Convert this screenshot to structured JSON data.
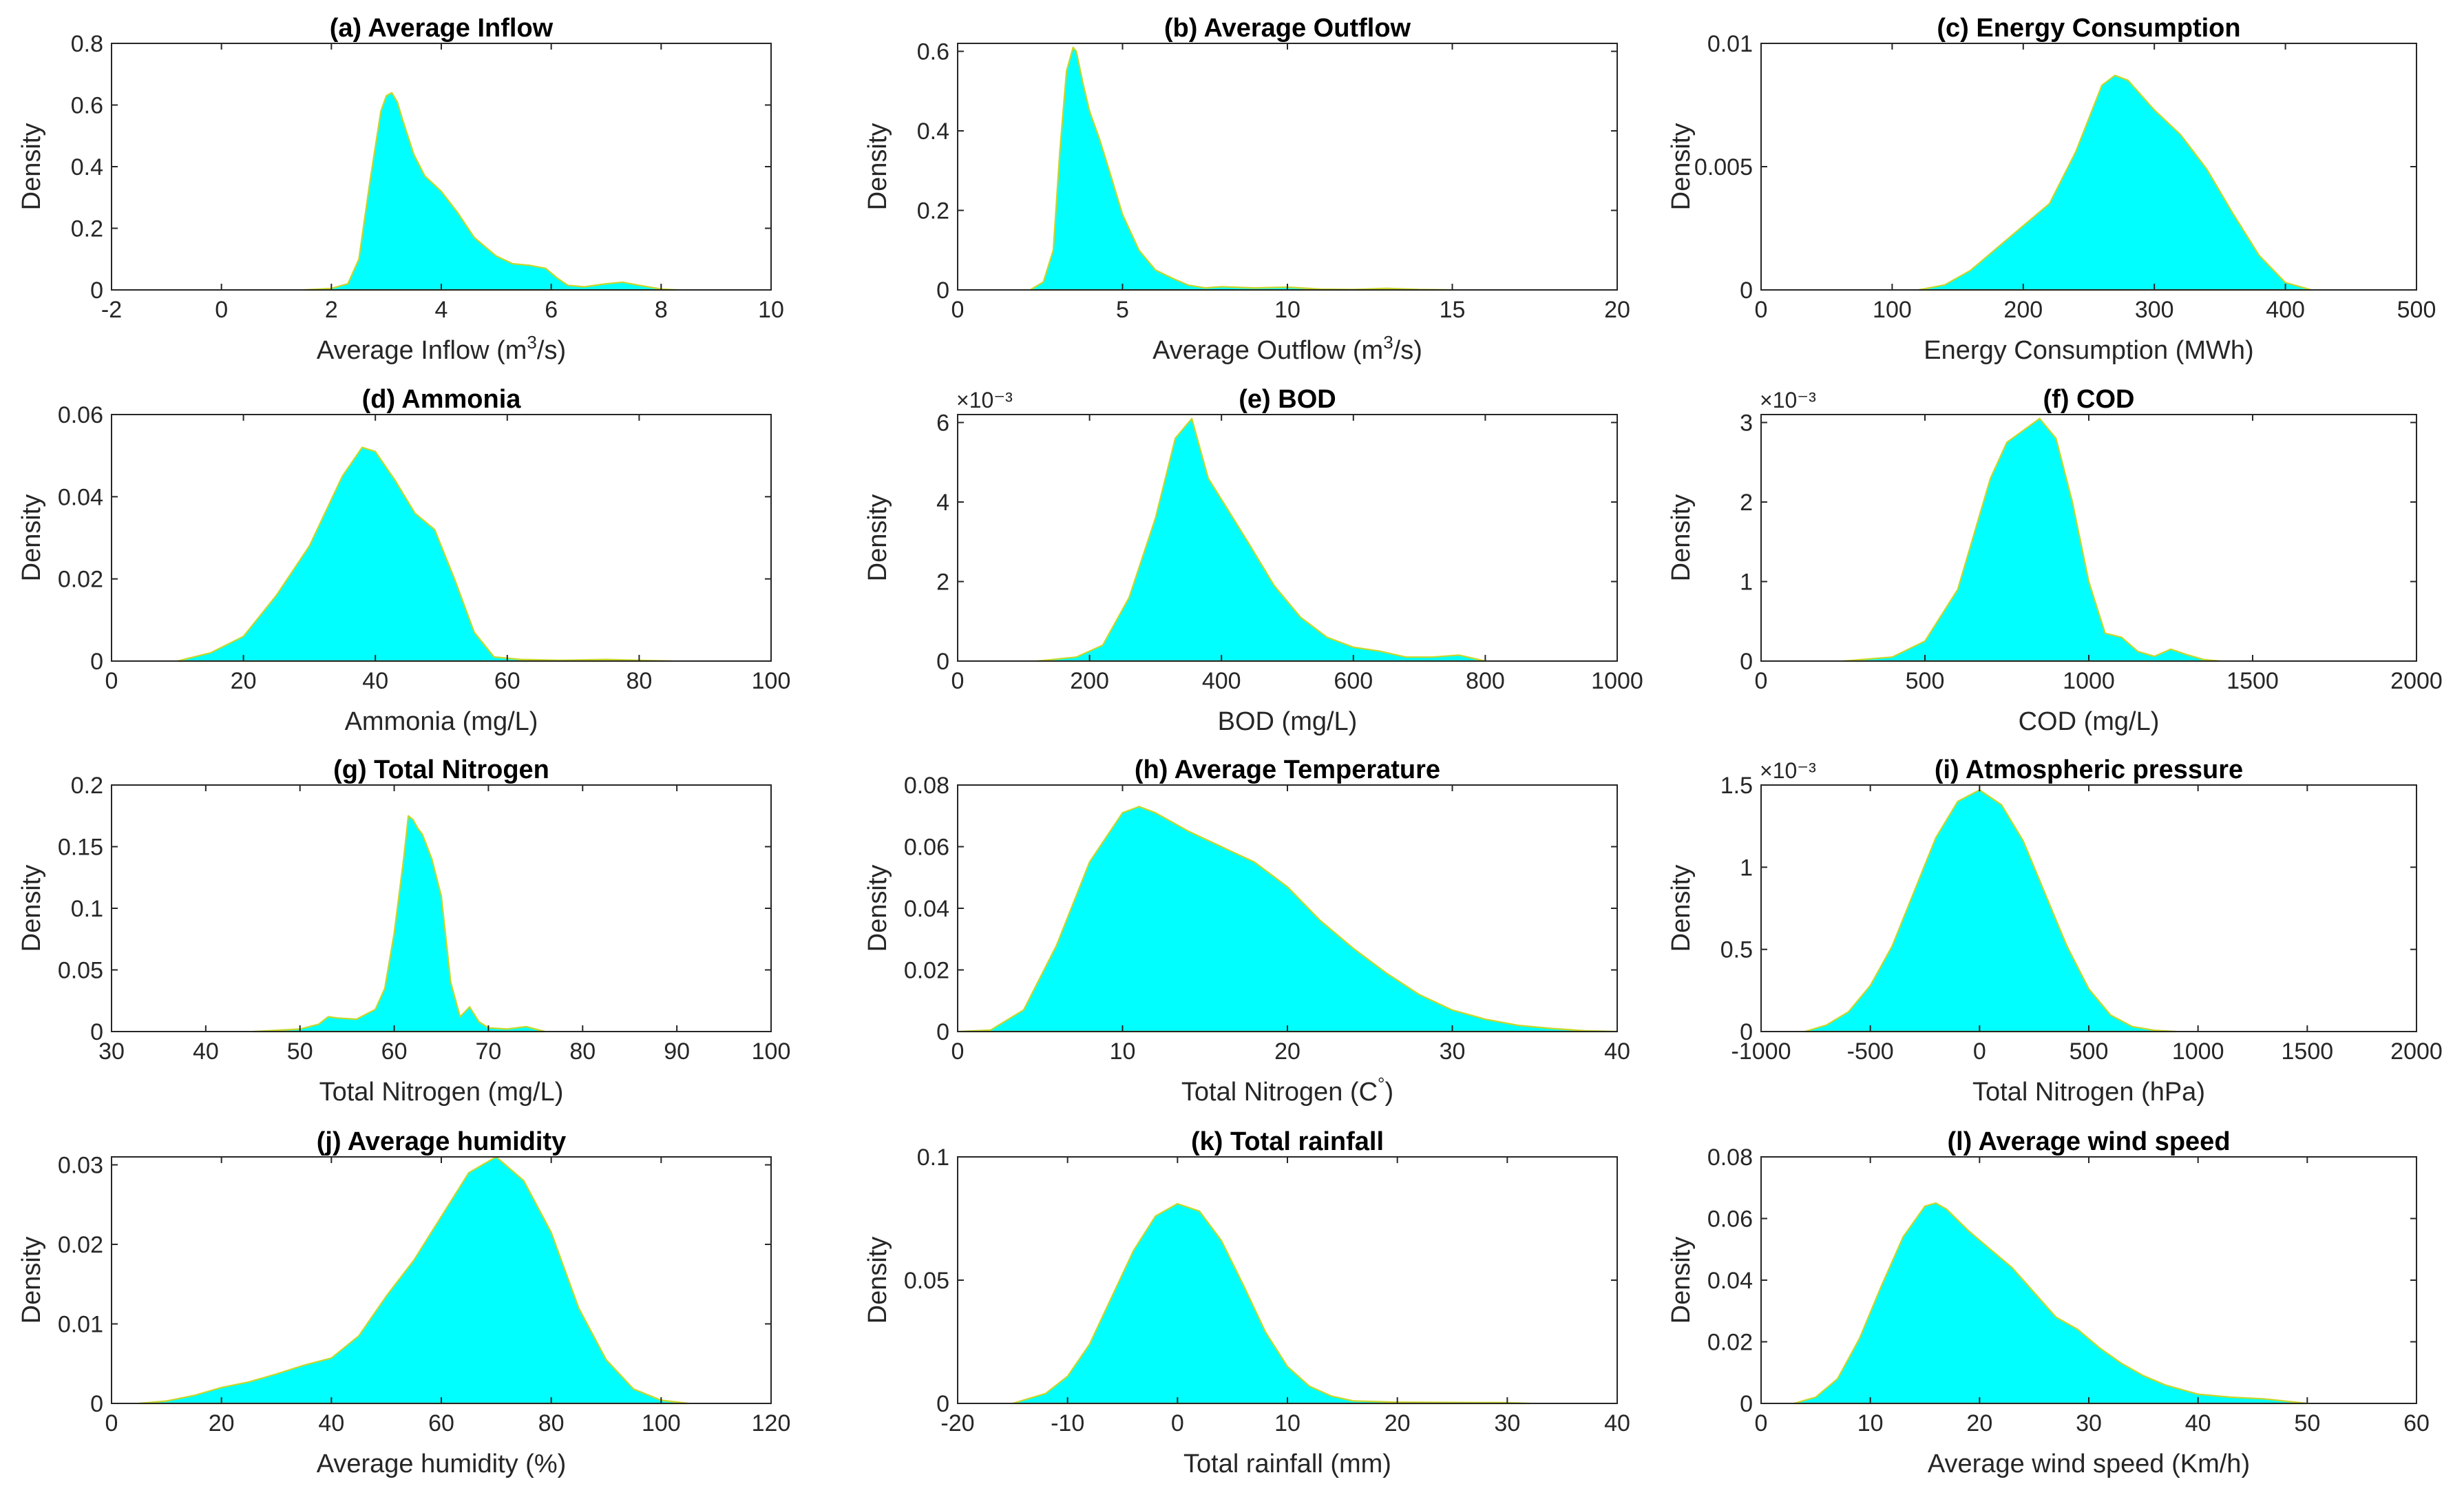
{
  "figure": {
    "colors": {
      "fill": "#00FFFF",
      "edge": "#C8D62A",
      "axis": "#262626",
      "title": "#000000"
    },
    "y_axis_label": "Density"
  },
  "chart_data": [
    {
      "type": "area",
      "title": "(a) Average Inflow",
      "xlabel_parts": [
        "Average Inflow (m",
        "3",
        "/s)"
      ],
      "ylabel": "Density",
      "xlim": [
        -2,
        10
      ],
      "ylim": [
        0,
        0.8
      ],
      "xticks": [
        -2,
        0,
        2,
        4,
        6,
        8,
        10
      ],
      "yticks": [
        0,
        0.2,
        0.4,
        0.6,
        0.8
      ],
      "exponent": "",
      "x": [
        1.5,
        2.0,
        2.3,
        2.5,
        2.7,
        2.9,
        3.0,
        3.1,
        3.2,
        3.3,
        3.5,
        3.7,
        4.0,
        4.3,
        4.6,
        5.0,
        5.3,
        5.6,
        5.9,
        6.1,
        6.3,
        6.6,
        7.0,
        7.3,
        7.6,
        8.0,
        8.3
      ],
      "y": [
        0.0,
        0.005,
        0.02,
        0.1,
        0.35,
        0.58,
        0.63,
        0.64,
        0.61,
        0.55,
        0.44,
        0.37,
        0.32,
        0.25,
        0.17,
        0.11,
        0.085,
        0.08,
        0.07,
        0.04,
        0.015,
        0.01,
        0.02,
        0.025,
        0.015,
        0.003,
        0.0
      ]
    },
    {
      "type": "area",
      "title": "(b) Average Outflow",
      "xlabel_parts": [
        "Average Outflow (m",
        "3",
        "/s)"
      ],
      "ylabel": "Density",
      "xlim": [
        0,
        20
      ],
      "ylim": [
        0,
        0.62
      ],
      "xticks": [
        0,
        5,
        10,
        15,
        20
      ],
      "yticks": [
        0,
        0.2,
        0.4,
        0.6
      ],
      "exponent": "",
      "x": [
        2.2,
        2.6,
        2.9,
        3.1,
        3.3,
        3.5,
        3.6,
        3.8,
        4.0,
        4.3,
        4.6,
        5.0,
        5.5,
        6.0,
        6.5,
        7.0,
        7.5,
        8.0,
        9.0,
        10.0,
        11.0,
        12.0,
        13.0,
        14.0,
        15.0
      ],
      "y": [
        0.0,
        0.02,
        0.1,
        0.35,
        0.55,
        0.61,
        0.6,
        0.52,
        0.45,
        0.38,
        0.3,
        0.19,
        0.1,
        0.05,
        0.03,
        0.012,
        0.005,
        0.008,
        0.005,
        0.007,
        0.002,
        0.001,
        0.004,
        0.001,
        0.0
      ]
    },
    {
      "type": "area",
      "title": "(c) Energy Consumption",
      "xlabel_parts": [
        "Energy Consumption (MWh)"
      ],
      "ylabel": "Density",
      "xlim": [
        0,
        500
      ],
      "ylim": [
        0,
        0.01
      ],
      "xticks": [
        0,
        100,
        200,
        300,
        400,
        500
      ],
      "yticks": [
        0,
        0.005,
        0.01
      ],
      "exponent": "",
      "x": [
        120,
        140,
        160,
        180,
        200,
        220,
        240,
        260,
        270,
        280,
        300,
        320,
        340,
        360,
        380,
        400,
        420
      ],
      "y": [
        0.0,
        0.0002,
        0.0008,
        0.0017,
        0.0026,
        0.0035,
        0.0056,
        0.0083,
        0.0087,
        0.0085,
        0.0073,
        0.0063,
        0.0049,
        0.0031,
        0.0014,
        0.0003,
        0.0
      ]
    },
    {
      "type": "area",
      "title": "(d) Ammonia",
      "xlabel_parts": [
        "Ammonia (mg/L)"
      ],
      "ylabel": "Density",
      "xlim": [
        0,
        100
      ],
      "ylim": [
        0,
        0.06
      ],
      "xticks": [
        0,
        20,
        40,
        60,
        80,
        100
      ],
      "yticks": [
        0,
        0.02,
        0.04,
        0.06
      ],
      "exponent": "",
      "x": [
        10,
        15,
        20,
        25,
        30,
        35,
        38,
        40,
        43,
        46,
        49,
        52,
        55,
        58,
        62,
        68,
        75,
        85
      ],
      "y": [
        0.0,
        0.002,
        0.006,
        0.016,
        0.028,
        0.045,
        0.052,
        0.051,
        0.044,
        0.036,
        0.032,
        0.02,
        0.007,
        0.001,
        0.0004,
        0.0002,
        0.0004,
        0.0
      ]
    },
    {
      "type": "area",
      "title": "(e) BOD",
      "xlabel_parts": [
        "BOD (mg/L)"
      ],
      "ylabel": "Density",
      "xlim": [
        0,
        1000
      ],
      "ylim": [
        0,
        6.2
      ],
      "xticks": [
        0,
        200,
        400,
        600,
        800,
        1000
      ],
      "yticks": [
        0,
        2,
        4,
        6
      ],
      "exponent": "×10⁻³",
      "x": [
        120,
        180,
        220,
        260,
        300,
        330,
        355,
        380,
        410,
        440,
        480,
        520,
        560,
        600,
        640,
        680,
        720,
        760,
        800
      ],
      "y": [
        0.0,
        0.1,
        0.4,
        1.6,
        3.6,
        5.6,
        6.1,
        4.6,
        3.8,
        3.0,
        1.9,
        1.1,
        0.6,
        0.35,
        0.25,
        0.1,
        0.1,
        0.15,
        0.0
      ]
    },
    {
      "type": "area",
      "title": "(f) COD",
      "xlabel_parts": [
        "COD (mg/L)"
      ],
      "ylabel": "Density",
      "xlim": [
        0,
        2000
      ],
      "ylim": [
        0,
        3.1
      ],
      "xticks": [
        0,
        500,
        1000,
        1500,
        2000
      ],
      "yticks": [
        0,
        1,
        2,
        3
      ],
      "exponent": "×10⁻³",
      "x": [
        250,
        400,
        500,
        600,
        650,
        700,
        750,
        800,
        850,
        900,
        950,
        1000,
        1050,
        1100,
        1150,
        1200,
        1250,
        1300,
        1350,
        1400
      ],
      "y": [
        0.0,
        0.05,
        0.25,
        0.9,
        1.6,
        2.3,
        2.75,
        2.9,
        3.05,
        2.8,
        2.0,
        1.0,
        0.35,
        0.3,
        0.12,
        0.06,
        0.15,
        0.08,
        0.02,
        0.0
      ]
    },
    {
      "type": "area",
      "title": "(g) Total Nitrogen",
      "xlabel_parts": [
        "Total Nitrogen (mg/L)"
      ],
      "ylabel": "Density",
      "xlim": [
        30,
        100
      ],
      "ylim": [
        0,
        0.2
      ],
      "xticks": [
        30,
        40,
        50,
        60,
        70,
        80,
        90,
        100
      ],
      "yticks": [
        0,
        0.05,
        0.1,
        0.15,
        0.2
      ],
      "exponent": "",
      "x": [
        45,
        50,
        52,
        53,
        54,
        56,
        58,
        59,
        60,
        61,
        61.5,
        62,
        62.5,
        63,
        64,
        65,
        66,
        67,
        68,
        69,
        70,
        72,
        74,
        76
      ],
      "y": [
        0.0,
        0.002,
        0.006,
        0.012,
        0.011,
        0.01,
        0.018,
        0.035,
        0.08,
        0.14,
        0.175,
        0.172,
        0.165,
        0.16,
        0.14,
        0.11,
        0.04,
        0.012,
        0.02,
        0.008,
        0.003,
        0.002,
        0.004,
        0.0
      ]
    },
    {
      "type": "area",
      "title": "(h) Average Temperature",
      "xlabel_parts": [
        "Total Nitrogen (C",
        "°",
        ")"
      ],
      "ylabel": "Density",
      "xlim": [
        0,
        40
      ],
      "ylim": [
        0,
        0.08
      ],
      "xticks": [
        0,
        10,
        20,
        30,
        40
      ],
      "yticks": [
        0,
        0.02,
        0.04,
        0.06,
        0.08
      ],
      "exponent": "",
      "x": [
        0,
        2,
        4,
        6,
        8,
        10,
        11,
        12,
        14,
        16,
        18,
        20,
        22,
        24,
        26,
        28,
        30,
        32,
        34,
        36,
        38,
        40
      ],
      "y": [
        0.0,
        0.0005,
        0.007,
        0.028,
        0.055,
        0.071,
        0.073,
        0.071,
        0.065,
        0.06,
        0.055,
        0.047,
        0.036,
        0.027,
        0.019,
        0.012,
        0.007,
        0.004,
        0.002,
        0.001,
        0.0003,
        0.0
      ]
    },
    {
      "type": "area",
      "title": "(i)  Atmospheric pressure",
      "xlabel_parts": [
        "Total Nitrogen (hPa)"
      ],
      "ylabel": "Density",
      "xlim": [
        -1000,
        2000
      ],
      "ylim": [
        0,
        1.5
      ],
      "xticks": [
        -1000,
        -500,
        0,
        500,
        1000,
        1500,
        2000
      ],
      "yticks": [
        0,
        0.5,
        1,
        1.5
      ],
      "exponent": "×10⁻³",
      "x": [
        -800,
        -700,
        -600,
        -500,
        -400,
        -300,
        -200,
        -100,
        0,
        100,
        200,
        300,
        400,
        500,
        600,
        700,
        800,
        900
      ],
      "y": [
        0.0,
        0.04,
        0.12,
        0.28,
        0.52,
        0.85,
        1.18,
        1.4,
        1.47,
        1.38,
        1.16,
        0.84,
        0.52,
        0.26,
        0.1,
        0.03,
        0.008,
        0.0
      ]
    },
    {
      "type": "area",
      "title": "(j)  Average humidity",
      "xlabel_parts": [
        "Average humidity (%)"
      ],
      "ylabel": "Density",
      "xlim": [
        0,
        120
      ],
      "ylim": [
        0,
        0.031
      ],
      "xticks": [
        0,
        20,
        40,
        60,
        80,
        100,
        120
      ],
      "yticks": [
        0,
        0.01,
        0.02,
        0.03
      ],
      "exponent": "",
      "x": [
        5,
        10,
        15,
        20,
        25,
        30,
        35,
        40,
        45,
        50,
        55,
        60,
        65,
        70,
        75,
        80,
        85,
        90,
        95,
        100,
        105
      ],
      "y": [
        0.0,
        0.0003,
        0.001,
        0.002,
        0.0027,
        0.0037,
        0.0048,
        0.0057,
        0.0085,
        0.0135,
        0.018,
        0.0235,
        0.029,
        0.031,
        0.028,
        0.0215,
        0.012,
        0.0055,
        0.0018,
        0.0004,
        0.0
      ]
    },
    {
      "type": "area",
      "title": "(k)  Total rainfall",
      "xlabel_parts": [
        "Total rainfall (mm)"
      ],
      "ylabel": "Density",
      "xlim": [
        -20,
        40
      ],
      "ylim": [
        0,
        0.1
      ],
      "xticks": [
        -20,
        -10,
        0,
        10,
        20,
        30,
        40
      ],
      "yticks": [
        0,
        0.05,
        0.1
      ],
      "exponent": "",
      "x": [
        -15,
        -12,
        -10,
        -8,
        -6,
        -4,
        -2,
        0,
        2,
        4,
        6,
        8,
        10,
        12,
        14,
        16,
        20,
        25,
        30,
        32
      ],
      "y": [
        0.0,
        0.004,
        0.011,
        0.024,
        0.043,
        0.062,
        0.076,
        0.081,
        0.078,
        0.066,
        0.048,
        0.029,
        0.015,
        0.007,
        0.003,
        0.001,
        0.0005,
        0.0004,
        0.0003,
        0.0
      ]
    },
    {
      "type": "area",
      "title": "(l)  Average wind speed",
      "xlabel_parts": [
        "Average wind speed (Km/h)"
      ],
      "ylabel": "Density",
      "xlim": [
        0,
        60
      ],
      "ylim": [
        0,
        0.08
      ],
      "xticks": [
        0,
        10,
        20,
        30,
        40,
        50,
        60
      ],
      "yticks": [
        0,
        0.02,
        0.04,
        0.06,
        0.08
      ],
      "exponent": "",
      "x": [
        3,
        5,
        7,
        9,
        11,
        13,
        15,
        16,
        17,
        19,
        21,
        23,
        25,
        27,
        29,
        31,
        33,
        35,
        37,
        40,
        43,
        46,
        50
      ],
      "y": [
        0.0,
        0.002,
        0.008,
        0.021,
        0.038,
        0.054,
        0.064,
        0.065,
        0.063,
        0.056,
        0.05,
        0.044,
        0.036,
        0.028,
        0.024,
        0.018,
        0.013,
        0.009,
        0.006,
        0.003,
        0.002,
        0.0015,
        0.0
      ]
    }
  ]
}
